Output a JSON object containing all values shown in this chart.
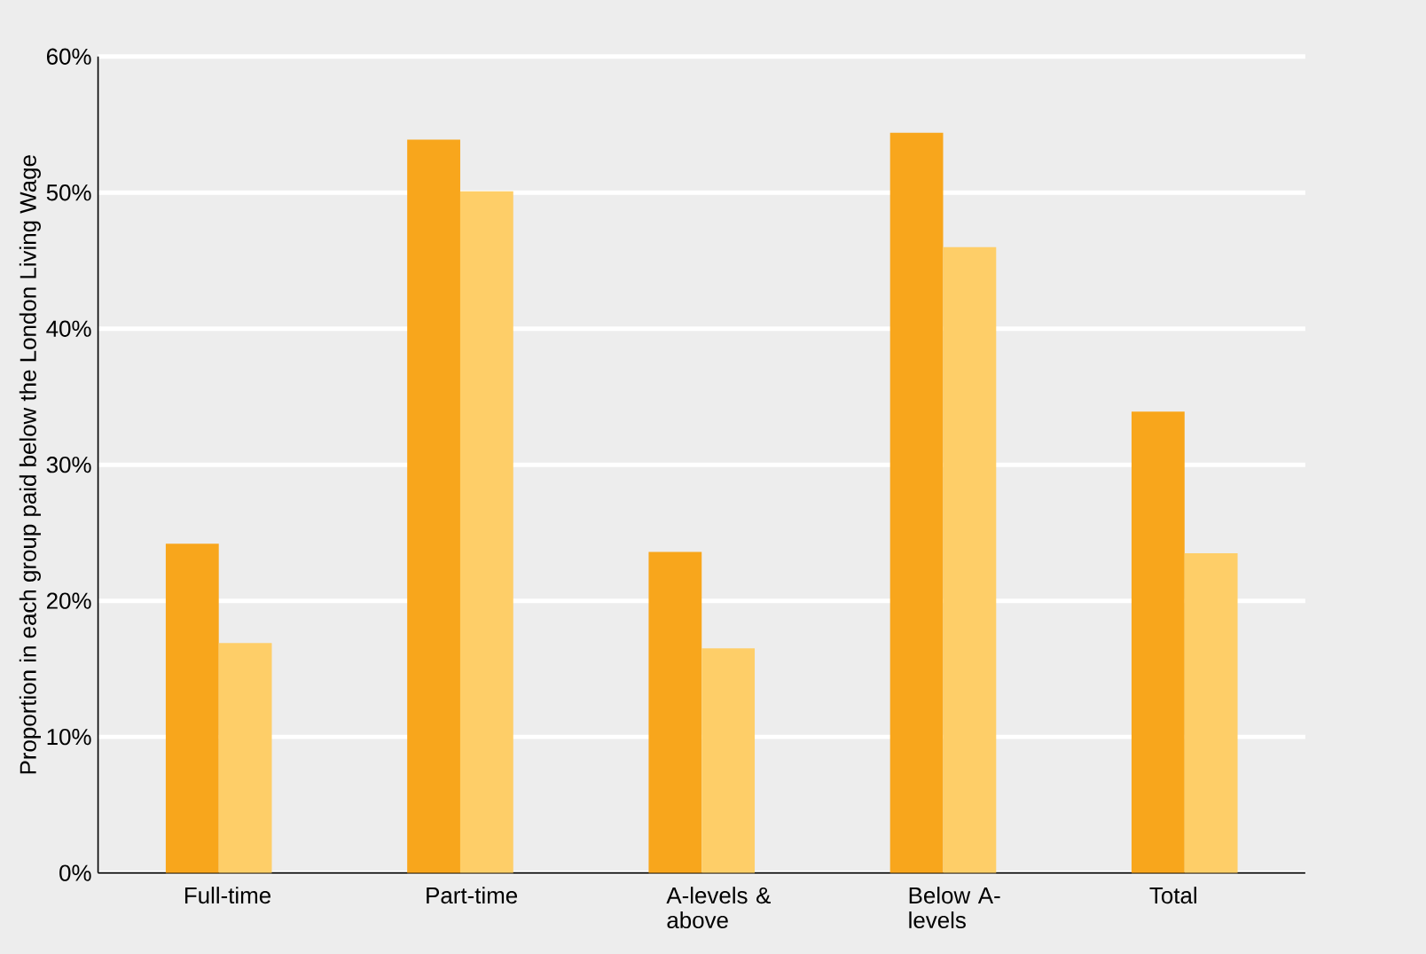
{
  "chart_data": {
    "type": "bar",
    "ylabel": "Proportion in each group paid below the London Living Wage",
    "categories": [
      "Full-time",
      "Part-time",
      "A-levels & above",
      "Below A-levels",
      "Total"
    ],
    "series": [
      {
        "color": "#f8a61c",
        "values": [
          24.2,
          53.9,
          23.6,
          54.4,
          33.9
        ]
      },
      {
        "color": "#fece68",
        "values": [
          16.9,
          50.1,
          16.5,
          46.0,
          23.5
        ]
      }
    ],
    "ylim": [
      0,
      60
    ],
    "yticks": [
      {
        "value": 0,
        "label": "0%"
      },
      {
        "value": 10,
        "label": "10%"
      },
      {
        "value": 20,
        "label": "20%"
      },
      {
        "value": 30,
        "label": "30%"
      },
      {
        "value": 40,
        "label": "40%"
      },
      {
        "value": 50,
        "label": "50%"
      },
      {
        "value": 60,
        "label": "60%"
      }
    ],
    "grid": "y"
  }
}
